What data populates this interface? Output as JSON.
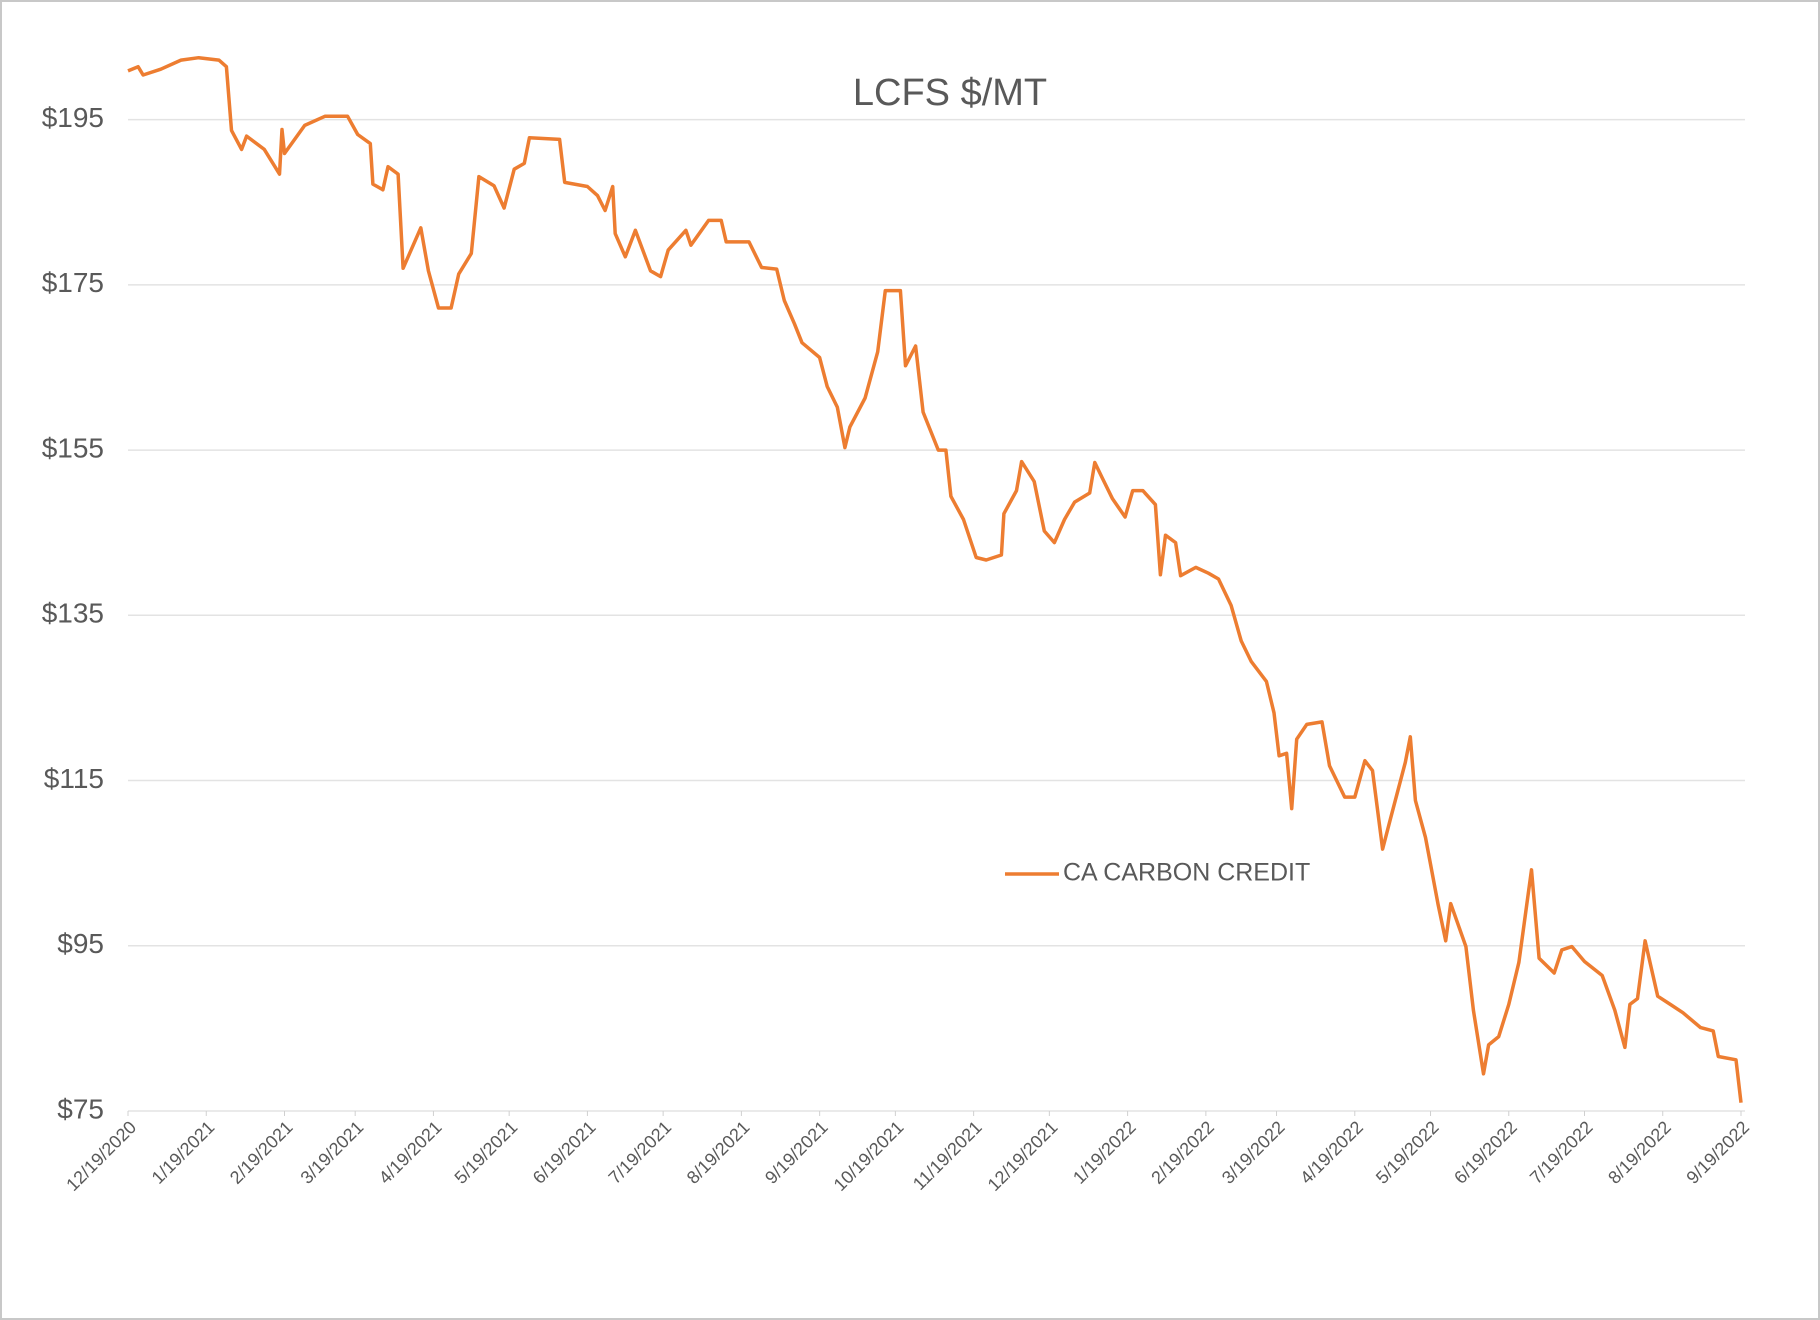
{
  "chart_data": {
    "type": "line",
    "title": "LCFS $/MT",
    "x": [
      "12/19/2020",
      "12/23/2020",
      "12/25/2020",
      "1/1/2021",
      "1/9/2021",
      "1/16/2021",
      "1/24/2021",
      "1/27/2021",
      "1/29/2021",
      "2/2/2021",
      "2/4/2021",
      "2/11/2021",
      "2/17/2021",
      "2/18/2021",
      "2/19/2021",
      "2/27/2021",
      "3/7/2021",
      "3/16/2021",
      "3/20/2021",
      "3/25/2021",
      "3/26/2021",
      "3/30/2021",
      "4/1/2021",
      "4/5/2021",
      "4/7/2021",
      "4/14/2021",
      "4/17/2021",
      "4/21/2021",
      "4/26/2021",
      "4/29/2021",
      "5/4/2021",
      "5/7/2021",
      "5/13/2021",
      "5/17/2021",
      "5/21/2021",
      "5/25/2021",
      "5/27/2021",
      "6/8/2021",
      "6/10/2021",
      "6/19/2021",
      "6/23/2021",
      "6/26/2021",
      "6/29/2021",
      "6/30/2021",
      "7/4/2021",
      "7/8/2021",
      "7/14/2021",
      "7/18/2021",
      "7/21/2021",
      "7/28/2021",
      "7/30/2021",
      "8/6/2021",
      "8/11/2021",
      "8/13/2021",
      "8/22/2021",
      "8/27/2021",
      "9/2/2021",
      "9/5/2021",
      "9/9/2021",
      "9/12/2021",
      "9/19/2021",
      "9/22/2021",
      "9/26/2021",
      "9/29/2021",
      "10/1/2021",
      "10/7/2021",
      "10/12/2021",
      "10/15/2021",
      "10/21/2021",
      "10/23/2021",
      "10/27/2021",
      "10/30/2021",
      "11/5/2021",
      "11/8/2021",
      "11/10/2021",
      "11/15/2021",
      "11/20/2021",
      "11/24/2021",
      "11/30/2021",
      "12/1/2021",
      "12/6/2021",
      "12/8/2021",
      "12/13/2021",
      "12/17/2021",
      "12/21/2021",
      "12/25/2021",
      "12/29/2021",
      "1/4/2022",
      "1/6/2022",
      "1/9/2022",
      "1/13/2022",
      "1/18/2022",
      "1/21/2022",
      "1/25/2022",
      "1/30/2022",
      "2/1/2022",
      "2/3/2022",
      "2/7/2022",
      "2/9/2022",
      "2/15/2022",
      "2/20/2022",
      "2/24/2022",
      "3/1/2022",
      "3/5/2022",
      "3/9/2022",
      "3/15/2022",
      "3/18/2022",
      "3/20/2022",
      "3/23/2022",
      "3/25/2022",
      "3/27/2022",
      "3/31/2022",
      "4/6/2022",
      "4/9/2022",
      "4/15/2022",
      "4/19/2022",
      "4/23/2022",
      "4/26/2022",
      "4/30/2022",
      "5/3/2022",
      "5/9/2022",
      "5/11/2022",
      "5/13/2022",
      "5/17/2022",
      "5/22/2022",
      "5/25/2022",
      "5/27/2022",
      "6/2/2022",
      "6/5/2022",
      "6/9/2022",
      "6/11/2022",
      "6/15/2022",
      "6/19/2022",
      "6/23/2022",
      "6/28/2022",
      "7/1/2022",
      "7/7/2022",
      "7/10/2022",
      "7/14/2022",
      "7/19/2022",
      "7/26/2022",
      "7/31/2022",
      "8/4/2022",
      "8/6/2022",
      "8/9/2022",
      "8/12/2022",
      "8/17/2022",
      "8/22/2022",
      "8/27/2022",
      "9/3/2022",
      "9/8/2022",
      "9/10/2022",
      "9/17/2022",
      "9/19/2022"
    ],
    "series": [
      {
        "name": "CA CARBON CREDIT",
        "color": "#ed7d31",
        "values": [
          200.9,
          201.4,
          200.4,
          201.1,
          202.2,
          202.5,
          202.2,
          201.4,
          193.7,
          191.4,
          193.0,
          191.4,
          188.4,
          193.8,
          190.9,
          194.3,
          195.4,
          195.4,
          193.2,
          192.1,
          187.2,
          186.5,
          189.3,
          188.4,
          177.0,
          181.9,
          176.7,
          172.2,
          172.2,
          176.3,
          178.8,
          188.1,
          187.0,
          184.3,
          189.0,
          189.7,
          192.8,
          192.6,
          187.4,
          186.9,
          185.8,
          184.0,
          186.9,
          181.2,
          178.4,
          181.6,
          176.7,
          176.0,
          179.2,
          181.6,
          179.8,
          182.8,
          182.8,
          180.2,
          180.2,
          177.1,
          176.9,
          173.1,
          170.3,
          168.0,
          166.2,
          162.7,
          160.2,
          155.3,
          157.8,
          161.3,
          166.9,
          174.3,
          174.3,
          165.2,
          167.6,
          159.6,
          155.0,
          155.0,
          149.4,
          146.6,
          142.0,
          141.7,
          142.3,
          147.3,
          150.1,
          153.6,
          151.2,
          145.2,
          143.8,
          146.6,
          148.7,
          149.8,
          153.5,
          151.6,
          149.1,
          146.9,
          150.1,
          150.1,
          148.4,
          139.9,
          144.7,
          143.8,
          139.8,
          140.8,
          140.1,
          139.4,
          136.2,
          131.9,
          129.4,
          127.0,
          123.2,
          118.0,
          118.3,
          111.6,
          120.0,
          121.8,
          122.1,
          116.8,
          113.0,
          113.0,
          117.4,
          116.2,
          106.7,
          110.2,
          117.2,
          120.3,
          112.6,
          108.1,
          100.0,
          95.6,
          100.1,
          94.9,
          87.2,
          79.5,
          83.0,
          84.0,
          87.9,
          93.0,
          104.2,
          93.5,
          91.7,
          94.5,
          94.9,
          93.1,
          91.4,
          87.2,
          82.7,
          87.9,
          88.6,
          95.6,
          88.9,
          87.9,
          86.9,
          85.1,
          84.7,
          81.6,
          81.2,
          76.0
        ]
      }
    ],
    "xlim": [
      "12/19/2020",
      "9/19/2022"
    ],
    "xticks": [
      "12/19/2020",
      "1/19/2021",
      "2/19/2021",
      "3/19/2021",
      "4/19/2021",
      "5/19/2021",
      "6/19/2021",
      "7/19/2021",
      "8/19/2021",
      "9/19/2021",
      "10/19/2021",
      "11/19/2021",
      "12/19/2021",
      "1/19/2022",
      "2/19/2022",
      "3/19/2022",
      "4/19/2022",
      "5/19/2022",
      "6/19/2022",
      "7/19/2022",
      "8/19/2022",
      "9/19/2022"
    ],
    "ylim": [
      75,
      205
    ],
    "yticks": [
      {
        "value": 75,
        "label": "$75"
      },
      {
        "value": 95,
        "label": "$95"
      },
      {
        "value": 115,
        "label": "$115"
      },
      {
        "value": 135,
        "label": "$135"
      },
      {
        "value": 155,
        "label": "$155"
      },
      {
        "value": 175,
        "label": "$175"
      },
      {
        "value": 195,
        "label": "$195"
      }
    ],
    "grid": true,
    "legend": "center"
  }
}
